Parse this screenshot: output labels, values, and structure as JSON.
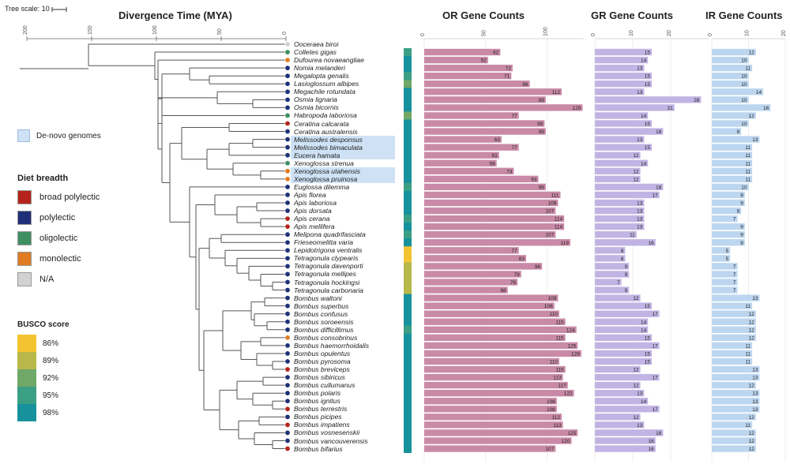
{
  "tree_scale": "Tree scale: 10",
  "titles": {
    "divergence": "Divergence Time (MYA)",
    "or": "OR Gene Counts",
    "gr": "GR Gene Counts",
    "ir": "IR Gene Counts"
  },
  "time_axis_ticks": [
    "200",
    "150",
    "100",
    "50",
    "0"
  ],
  "or_axis_ticks": [
    "0",
    "50",
    "100"
  ],
  "gr_axis_ticks": [
    "0",
    "10",
    "20"
  ],
  "ir_axis_ticks": [
    "0",
    "10",
    "20"
  ],
  "denovo_label": "De-novo genomes",
  "diet_legend": {
    "title": "Diet breadth",
    "items": [
      {
        "label": "broad polylectic",
        "color": "#b5231c"
      },
      {
        "label": "polylectic",
        "color": "#1f2f78"
      },
      {
        "label": "oligolectic",
        "color": "#3f8f63"
      },
      {
        "label": "monolectic",
        "color": "#e07b22"
      },
      {
        "label": "N/A",
        "color": "#d2d2d2"
      }
    ]
  },
  "busco_legend": {
    "title": "BUSCO score",
    "items": [
      {
        "label": "86%",
        "color": "#f4c430"
      },
      {
        "label": "89%",
        "color": "#b8b84a"
      },
      {
        "label": "92%",
        "color": "#6fa867"
      },
      {
        "label": "95%",
        "color": "#3a9f85"
      },
      {
        "label": "98%",
        "color": "#17929c"
      }
    ]
  },
  "colors": {
    "or_bar": "#c98aa7",
    "gr_bar": "#c1b4e4",
    "ir_bar": "#bcd6f0",
    "highlight": "#cfe2f5"
  },
  "chart_data": [
    {
      "type": "bar",
      "title": "OR Gene Counts",
      "categories": [
        "Ooceraea biroi",
        "Colletes gigas",
        "Dufourea novaeangliae",
        "Nomia melanderi",
        "Megalopta genalis",
        "Lasioglossum albipes",
        "Megachile rotundata",
        "Osmia lignaria",
        "Osmia bicornis",
        "Habropoda laboriosa",
        "Ceratina calcarata",
        "Ceratina australensis",
        "Melissodes desponsus",
        "Melissodes bimaculata",
        "Eucera hamata",
        "Xenoglossa strenua",
        "Xenoglossa utahensis",
        "Xenoglossa pruinosa",
        "Euglossa dilemma",
        "Apis florea",
        "Apis laboriosa",
        "Apis dorsata",
        "Apis cerana",
        "Apis mellifera",
        "Melipona quadrifasciata",
        "Frieseomelitta varia",
        "Lepidotrigona ventralis",
        "Tetragonula clypearis",
        "Tetragonula davenporti",
        "Tetragonula mellipes",
        "Tetragonula hockingsi",
        "Tetragonula carbonaria",
        "Bombus waltoni",
        "Bombus superbus",
        "Bombus confusus",
        "Bombus soroeensis",
        "Bombus difficillimus",
        "Bombus consobrinus",
        "Bombus haemorrhoidalis",
        "Bombus opulentus",
        "Bombus pyrosoma",
        "Bombus breviceps",
        "Bombus sibiricus",
        "Bombus cullumanus",
        "Bombus polaris",
        "Bombus ignitus",
        "Bombus terrestris",
        "Bombus picipes",
        "Bombus impatiens",
        "Bombus vosnesenskii",
        "Bombus vancouverensis",
        "Bombus bifarius"
      ],
      "values": [
        null,
        62,
        52,
        72,
        71,
        86,
        112,
        99,
        129,
        77,
        98,
        99,
        63,
        77,
        61,
        59,
        73,
        93,
        99,
        111,
        109,
        107,
        114,
        114,
        107,
        119,
        77,
        83,
        96,
        79,
        76,
        68,
        109,
        106,
        110,
        115,
        124,
        115,
        125,
        128,
        110,
        115,
        113,
        117,
        122,
        108,
        108,
        112,
        113,
        125,
        120,
        107
      ],
      "xlim": [
        0,
        130
      ]
    },
    {
      "type": "bar",
      "title": "GR Gene Counts",
      "categories": [
        "Ooceraea biroi",
        "Colletes gigas",
        "Dufourea novaeangliae",
        "Nomia melanderi",
        "Megalopta genalis",
        "Lasioglossum albipes",
        "Megachile rotundata",
        "Osmia lignaria",
        "Osmia bicornis",
        "Habropoda laboriosa",
        "Ceratina calcarata",
        "Ceratina australensis",
        "Melissodes desponsus",
        "Melissodes bimaculata",
        "Eucera hamata",
        "Xenoglossa strenua",
        "Xenoglossa utahensis",
        "Xenoglossa pruinosa",
        "Euglossa dilemma",
        "Apis florea",
        "Apis laboriosa",
        "Apis dorsata",
        "Apis cerana",
        "Apis mellifera",
        "Melipona quadrifasciata",
        "Frieseomelitta varia",
        "Lepidotrigona ventralis",
        "Tetragonula clypearis",
        "Tetragonula davenporti",
        "Tetragonula mellipes",
        "Tetragonula hockingsi",
        "Tetragonula carbonaria",
        "Bombus waltoni",
        "Bombus superbus",
        "Bombus confusus",
        "Bombus soroeensis",
        "Bombus difficillimus",
        "Bombus consobrinus",
        "Bombus haemorrhoidalis",
        "Bombus opulentus",
        "Bombus pyrosoma",
        "Bombus breviceps",
        "Bombus sibiricus",
        "Bombus cullumanus",
        "Bombus polaris",
        "Bombus ignitus",
        "Bombus terrestris",
        "Bombus picipes",
        "Bombus impatiens",
        "Bombus vosnesenskii",
        "Bombus vancouverensis",
        "Bombus bifarius"
      ],
      "values": [
        null,
        15,
        14,
        13,
        15,
        15,
        13,
        28,
        21,
        14,
        15,
        18,
        13,
        15,
        12,
        14,
        12,
        12,
        18,
        17,
        13,
        13,
        13,
        13,
        11,
        16,
        8,
        8,
        9,
        9,
        7,
        9,
        12,
        15,
        17,
        14,
        14,
        15,
        17,
        15,
        15,
        12,
        17,
        12,
        13,
        14,
        17,
        12,
        13,
        18,
        16,
        16
      ],
      "xlim": [
        0,
        30
      ]
    },
    {
      "type": "bar",
      "title": "IR Gene Counts",
      "categories": [
        "Ooceraea biroi",
        "Colletes gigas",
        "Dufourea novaeangliae",
        "Nomia melanderi",
        "Megalopta genalis",
        "Lasioglossum albipes",
        "Megachile rotundata",
        "Osmia lignaria",
        "Osmia bicornis",
        "Habropoda laboriosa",
        "Ceratina calcarata",
        "Ceratina australensis",
        "Melissodes desponsus",
        "Melissodes bimaculata",
        "Eucera hamata",
        "Xenoglossa strenua",
        "Xenoglossa utahensis",
        "Xenoglossa pruinosa",
        "Euglossa dilemma",
        "Apis florea",
        "Apis laboriosa",
        "Apis dorsata",
        "Apis cerana",
        "Apis mellifera",
        "Melipona quadrifasciata",
        "Frieseomelitta varia",
        "Lepidotrigona ventralis",
        "Tetragonula clypearis",
        "Tetragonula davenporti",
        "Tetragonula mellipes",
        "Tetragonula hockingsi",
        "Tetragonula carbonaria",
        "Bombus waltoni",
        "Bombus superbus",
        "Bombus confusus",
        "Bombus soroeensis",
        "Bombus difficillimus",
        "Bombus consobrinus",
        "Bombus haemorrhoidalis",
        "Bombus opulentus",
        "Bombus pyrosoma",
        "Bombus breviceps",
        "Bombus sibiricus",
        "Bombus cullumanus",
        "Bombus polaris",
        "Bombus ignitus",
        "Bombus terrestris",
        "Bombus picipes",
        "Bombus impatiens",
        "Bombus vosnesenskii",
        "Bombus vancouverensis",
        "Bombus bifarius"
      ],
      "values": [
        null,
        12,
        10,
        11,
        10,
        10,
        14,
        10,
        16,
        12,
        10,
        8,
        13,
        11,
        11,
        11,
        11,
        11,
        10,
        9,
        9,
        8,
        7,
        9,
        9,
        9,
        5,
        5,
        7,
        7,
        7,
        7,
        13,
        11,
        12,
        12,
        12,
        12,
        11,
        11,
        11,
        13,
        13,
        12,
        13,
        13,
        13,
        12,
        11,
        12,
        12,
        12
      ],
      "xlim": [
        0,
        20
      ]
    }
  ],
  "species": [
    {
      "name": "Ooceraea biroi",
      "diet": "na",
      "busco": null,
      "denovo": false
    },
    {
      "name": "Colletes gigas",
      "diet": "oligolectic",
      "busco": "95%",
      "denovo": false
    },
    {
      "name": "Dufourea novaeangliae",
      "diet": "monolectic",
      "busco": "98%",
      "denovo": false
    },
    {
      "name": "Nomia melanderi",
      "diet": "polylectic",
      "busco": "98%",
      "denovo": false
    },
    {
      "name": "Megalopta genalis",
      "diet": "polylectic",
      "busco": "95%",
      "denovo": false
    },
    {
      "name": "Lasioglossum albipes",
      "diet": "polylectic",
      "busco": "92%",
      "denovo": false
    },
    {
      "name": "Megachile rotundata",
      "diet": "polylectic",
      "busco": "98%",
      "denovo": false
    },
    {
      "name": "Osmia lignaria",
      "diet": "polylectic",
      "busco": "98%",
      "denovo": false
    },
    {
      "name": "Osmia bicornis",
      "diet": "polylectic",
      "busco": "98%",
      "denovo": false
    },
    {
      "name": "Habropoda laboriosa",
      "diet": "oligolectic",
      "busco": "92%",
      "denovo": false
    },
    {
      "name": "Ceratina calcarata",
      "diet": "broad",
      "busco": "98%",
      "denovo": false
    },
    {
      "name": "Ceratina australensis",
      "diet": "polylectic",
      "busco": "98%",
      "denovo": false
    },
    {
      "name": "Melissodes desponsus",
      "diet": "polylectic",
      "busco": "98%",
      "denovo": true
    },
    {
      "name": "Melissodes bimaculata",
      "diet": "polylectic",
      "busco": "98%",
      "denovo": true
    },
    {
      "name": "Eucera hamata",
      "diet": "polylectic",
      "busco": "98%",
      "denovo": true
    },
    {
      "name": "Xenoglossa strenua",
      "diet": "oligolectic",
      "busco": "98%",
      "denovo": false
    },
    {
      "name": "Xenoglossa utahensis",
      "diet": "monolectic",
      "busco": "98%",
      "denovo": true
    },
    {
      "name": "Xenoglossa pruinosa",
      "diet": "monolectic",
      "busco": "98%",
      "denovo": true
    },
    {
      "name": "Euglossa dilemma",
      "diet": "polylectic",
      "busco": "95%",
      "denovo": false
    },
    {
      "name": "Apis florea",
      "diet": "polylectic",
      "busco": "98%",
      "denovo": false
    },
    {
      "name": "Apis laboriosa",
      "diet": "polylectic",
      "busco": "98%",
      "denovo": false
    },
    {
      "name": "Apis dorsata",
      "diet": "polylectic",
      "busco": "98%",
      "denovo": false
    },
    {
      "name": "Apis cerana",
      "diet": "broad",
      "busco": "95%",
      "denovo": false
    },
    {
      "name": "Apis mellifera",
      "diet": "broad",
      "busco": "98%",
      "denovo": false
    },
    {
      "name": "Melipona quadrifasciata",
      "diet": "polylectic",
      "busco": "95%",
      "denovo": false
    },
    {
      "name": "Frieseomelitta varia",
      "diet": "polylectic",
      "busco": "98%",
      "denovo": false
    },
    {
      "name": "Lepidotrigona ventralis",
      "diet": "polylectic",
      "busco": "86%",
      "denovo": false
    },
    {
      "name": "Tetragonula clypearis",
      "diet": "polylectic",
      "busco": "86%",
      "denovo": false
    },
    {
      "name": "Tetragonula davenporti",
      "diet": "polylectic",
      "busco": "89%",
      "denovo": false
    },
    {
      "name": "Tetragonula mellipes",
      "diet": "polylectic",
      "busco": "89%",
      "denovo": false
    },
    {
      "name": "Tetragonula hockingsi",
      "diet": "polylectic",
      "busco": "89%",
      "denovo": false
    },
    {
      "name": "Tetragonula carbonaria",
      "diet": "polylectic",
      "busco": "89%",
      "denovo": false
    },
    {
      "name": "Bombus waltoni",
      "diet": "polylectic",
      "busco": "98%",
      "denovo": false
    },
    {
      "name": "Bombus superbus",
      "diet": "polylectic",
      "busco": "98%",
      "denovo": false
    },
    {
      "name": "Bombus confusus",
      "diet": "polylectic",
      "busco": "98%",
      "denovo": false
    },
    {
      "name": "Bombus soroeensis",
      "diet": "polylectic",
      "busco": "98%",
      "denovo": false
    },
    {
      "name": "Bombus difficillimus",
      "diet": "polylectic",
      "busco": "95%",
      "denovo": false
    },
    {
      "name": "Bombus consobrinus",
      "diet": "monolectic",
      "busco": "98%",
      "denovo": false
    },
    {
      "name": "Bombus haemorrhoidalis",
      "diet": "polylectic",
      "busco": "98%",
      "denovo": false
    },
    {
      "name": "Bombus opulentus",
      "diet": "polylectic",
      "busco": "98%",
      "denovo": false
    },
    {
      "name": "Bombus pyrosoma",
      "diet": "polylectic",
      "busco": "98%",
      "denovo": false
    },
    {
      "name": "Bombus breviceps",
      "diet": "broad",
      "busco": "98%",
      "denovo": false
    },
    {
      "name": "Bombus sibiricus",
      "diet": "polylectic",
      "busco": "98%",
      "denovo": false
    },
    {
      "name": "Bombus cullumanus",
      "diet": "polylectic",
      "busco": "98%",
      "denovo": false
    },
    {
      "name": "Bombus polaris",
      "diet": "polylectic",
      "busco": "98%",
      "denovo": false
    },
    {
      "name": "Bombus ignitus",
      "diet": "polylectic",
      "busco": "98%",
      "denovo": false
    },
    {
      "name": "Bombus terrestris",
      "diet": "broad",
      "busco": "98%",
      "denovo": false
    },
    {
      "name": "Bombus picipes",
      "diet": "polylectic",
      "busco": "98%",
      "denovo": false
    },
    {
      "name": "Bombus impatiens",
      "diet": "broad",
      "busco": "98%",
      "denovo": false
    },
    {
      "name": "Bombus vosnesenskii",
      "diet": "polylectic",
      "busco": "98%",
      "denovo": false
    },
    {
      "name": "Bombus vancouverensis",
      "diet": "polylectic",
      "busco": "98%",
      "denovo": false
    },
    {
      "name": "Bombus bifarius",
      "diet": "broad",
      "busco": "98%",
      "denovo": false
    }
  ]
}
